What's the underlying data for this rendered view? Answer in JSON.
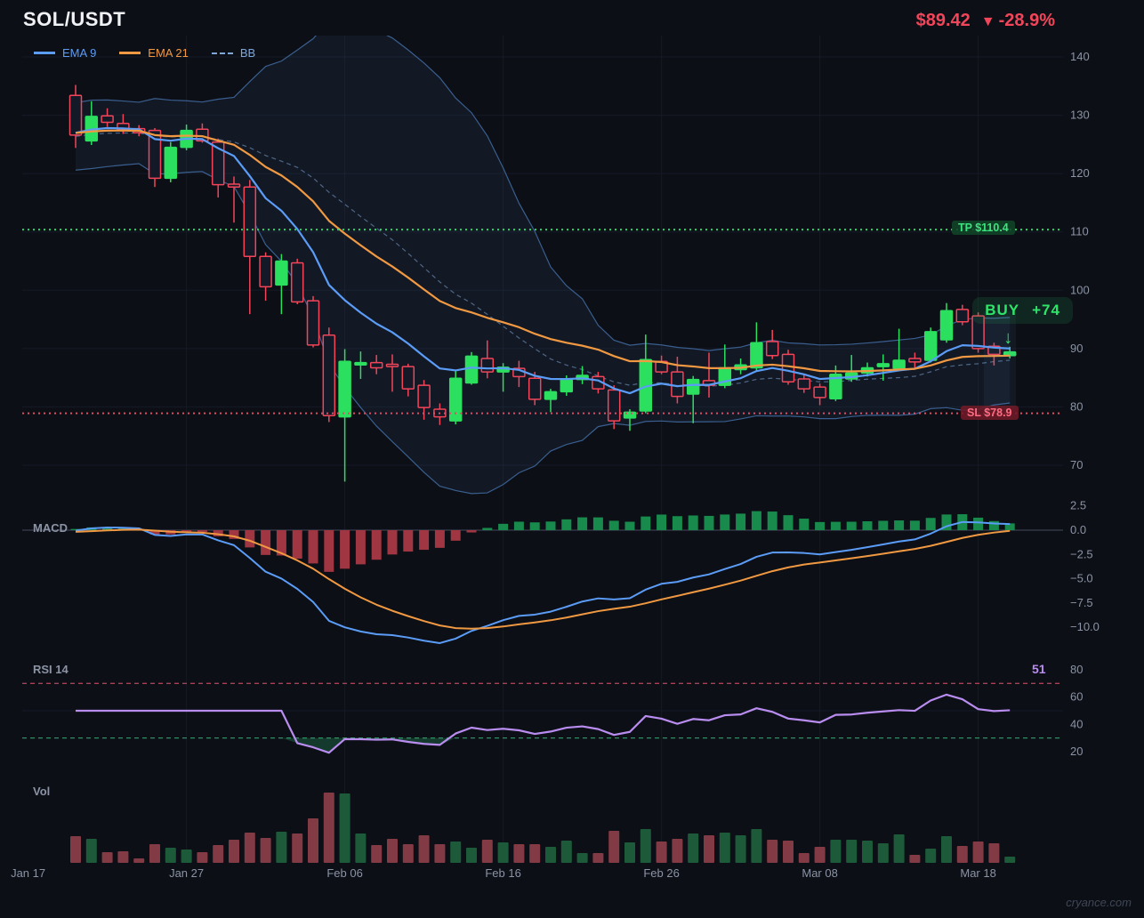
{
  "header": {
    "symbol": "SOL/USDT",
    "price": "$89.42",
    "direction_icon": "▼",
    "change": "-28.9%"
  },
  "legend": [
    {
      "label": "EMA 9",
      "color": "#5b9cf6",
      "style": "solid"
    },
    {
      "label": "EMA 21",
      "color": "#f09942",
      "style": "solid"
    },
    {
      "label": "BB",
      "color": "#7ea6d8",
      "style": "dashed"
    }
  ],
  "panels": {
    "macd_label": "MACD",
    "rsi_label": "RSI 14",
    "rsi_value": "51",
    "vol_label": "Vol"
  },
  "annotations": {
    "take_profit": {
      "label": "TP $110.4",
      "price": 110.4,
      "color": "#2bd46a"
    },
    "stop_loss": {
      "label": "SL $78.9",
      "price": 78.9,
      "color": "#e14b63"
    },
    "buy_signal": {
      "label": "BUY",
      "score": "+74",
      "candle_index": 59,
      "color": "#2ee56a"
    }
  },
  "watermark": "cryance.com",
  "chart_data": {
    "type": "candlestick",
    "title": "SOL/USDT daily with EMA9, EMA21, Bollinger Bands, MACD, RSI, Volume",
    "price_ticks": [
      140,
      130,
      120,
      110,
      100,
      90,
      80,
      70
    ],
    "x_ticks": [
      {
        "i": -3,
        "label": "Jan 17"
      },
      {
        "i": 7,
        "label": "Jan 27"
      },
      {
        "i": 17,
        "label": "Feb 06"
      },
      {
        "i": 27,
        "label": "Feb 16"
      },
      {
        "i": 37,
        "label": "Feb 26"
      },
      {
        "i": 47,
        "label": "Mar 08"
      },
      {
        "i": 57,
        "label": "Mar 18"
      }
    ],
    "macd_ticks": [
      {
        "v": 2.5,
        "label": "2.5"
      },
      {
        "v": 0,
        "label": "0.0"
      },
      {
        "v": -2.5,
        "label": "−2.5"
      },
      {
        "v": -5,
        "label": "−5.0"
      },
      {
        "v": -7.5,
        "label": "−7.5"
      },
      {
        "v": -10,
        "label": "−10.0"
      }
    ],
    "rsi_ticks": [
      80,
      60,
      40,
      20
    ],
    "rsi_levels": {
      "overbought": 70,
      "oversold": 30
    },
    "indicators": {
      "ema_fast": 9,
      "ema_slow": 21,
      "bb_window": 20,
      "bb_mult": 2,
      "macd": [
        12,
        26,
        9
      ],
      "rsi_period": 14
    },
    "colors": {
      "bull": "#2ce05f",
      "bear": "#f2455a",
      "bear_fill": "#141927",
      "ema9": "#5b9cf6",
      "ema21": "#f09942",
      "bb_line": "#3a5f8f",
      "bb_mid": "#6381a8",
      "bb_fill": "rgba(90,140,210,0.08)",
      "hist_pos": "#178a4c",
      "hist_neg": "#a03642",
      "rsi": "#b98df0",
      "rsi_fill": "rgba(40,160,100,0.30)",
      "ob_line": "#a84355",
      "os_line": "#2f8f63",
      "vol_up": "#1d5a3a",
      "vol_down": "#823a44",
      "grid": "#141a26",
      "axis_text": "#8b93a4",
      "zero_line": "#434b5c"
    },
    "ohlcv": [
      [
        133.4,
        135.2,
        124.4,
        126.6,
        30
      ],
      [
        125.6,
        132.4,
        124.9,
        129.8,
        27
      ],
      [
        129.9,
        131.2,
        128.0,
        128.8,
        12
      ],
      [
        128.6,
        130.2,
        126.8,
        127.5,
        13
      ],
      [
        127.7,
        128.3,
        126.4,
        127.0,
        5
      ],
      [
        127.4,
        127.8,
        117.7,
        119.2,
        21
      ],
      [
        119.2,
        125.4,
        118.5,
        124.5,
        17
      ],
      [
        124.5,
        128.4,
        124.0,
        127.4,
        15
      ],
      [
        127.6,
        128.6,
        125.3,
        125.6,
        12
      ],
      [
        125.4,
        126.0,
        115.9,
        118.1,
        20
      ],
      [
        118.2,
        119.5,
        111.6,
        117.7,
        26
      ],
      [
        117.7,
        118.9,
        95.9,
        105.8,
        34
      ],
      [
        105.8,
        106.5,
        98.2,
        100.6,
        28
      ],
      [
        100.9,
        106.2,
        95.9,
        105.0,
        35
      ],
      [
        104.7,
        105.4,
        97.6,
        98.0,
        33
      ],
      [
        98.2,
        99.0,
        90.2,
        90.6,
        50
      ],
      [
        92.3,
        93.6,
        77.4,
        78.5,
        79
      ],
      [
        78.3,
        89.9,
        67.2,
        87.8,
        78
      ],
      [
        87.2,
        89.5,
        84.8,
        87.6,
        33
      ],
      [
        87.6,
        88.9,
        85.6,
        86.7,
        20
      ],
      [
        87.3,
        89.0,
        82.6,
        86.9,
        27
      ],
      [
        86.9,
        87.4,
        81.8,
        83.1,
        21
      ],
      [
        83.7,
        84.6,
        77.8,
        79.9,
        31
      ],
      [
        79.6,
        80.6,
        76.9,
        78.3,
        21
      ],
      [
        77.6,
        86.2,
        77.0,
        84.9,
        24
      ],
      [
        84.1,
        89.4,
        83.8,
        88.7,
        17
      ],
      [
        88.3,
        91.4,
        84.9,
        86.0,
        26
      ],
      [
        86.0,
        87.5,
        82.6,
        86.8,
        23
      ],
      [
        86.6,
        87.9,
        83.4,
        85.2,
        21
      ],
      [
        84.9,
        86.0,
        80.3,
        81.3,
        21
      ],
      [
        81.3,
        83.1,
        79.1,
        82.6,
        18
      ],
      [
        82.6,
        85.4,
        81.9,
        84.7,
        25
      ],
      [
        84.7,
        87.0,
        83.9,
        85.4,
        11
      ],
      [
        85.2,
        86.0,
        82.3,
        83.1,
        11
      ],
      [
        82.9,
        83.7,
        76.2,
        77.6,
        36
      ],
      [
        78.1,
        79.6,
        75.9,
        79.1,
        23
      ],
      [
        79.3,
        92.4,
        78.9,
        88.1,
        38
      ],
      [
        87.8,
        88.8,
        85.6,
        86.0,
        24
      ],
      [
        86.0,
        88.6,
        80.6,
        81.8,
        27
      ],
      [
        82.2,
        85.3,
        77.2,
        84.7,
        33
      ],
      [
        84.5,
        89.3,
        81.6,
        83.7,
        31
      ],
      [
        83.7,
        90.7,
        83.2,
        86.7,
        34
      ],
      [
        86.4,
        88.3,
        85.6,
        87.2,
        31
      ],
      [
        86.7,
        94.5,
        86.2,
        91.0,
        38
      ],
      [
        91.2,
        93.2,
        88.2,
        88.8,
        26
      ],
      [
        89.0,
        89.8,
        83.8,
        84.3,
        25
      ],
      [
        84.8,
        85.6,
        82.4,
        83.1,
        11
      ],
      [
        83.4,
        84.0,
        80.3,
        81.6,
        18
      ],
      [
        81.4,
        87.1,
        81.0,
        85.6,
        26
      ],
      [
        84.8,
        88.9,
        84.3,
        85.8,
        26
      ],
      [
        85.8,
        87.6,
        85.2,
        86.7,
        25
      ],
      [
        86.9,
        89.0,
        84.5,
        87.4,
        22
      ],
      [
        86.6,
        93.4,
        86.2,
        88.0,
        32
      ],
      [
        88.3,
        89.3,
        86.5,
        87.7,
        9
      ],
      [
        88.0,
        93.6,
        87.6,
        92.9,
        16
      ],
      [
        91.5,
        97.8,
        91.0,
        96.5,
        30
      ],
      [
        96.7,
        97.5,
        94.0,
        94.6,
        19
      ],
      [
        95.6,
        96.2,
        89.3,
        90.0,
        24
      ],
      [
        90.4,
        91.0,
        87.1,
        89.0,
        22
      ],
      [
        88.8,
        90.3,
        88.3,
        89.42,
        7
      ]
    ]
  }
}
